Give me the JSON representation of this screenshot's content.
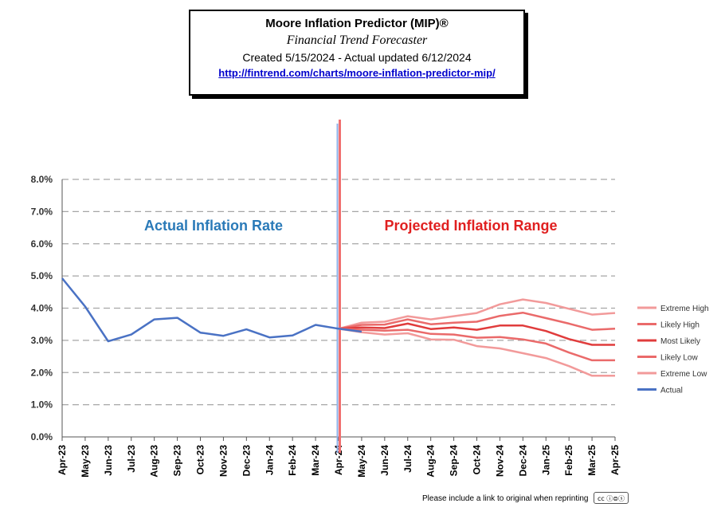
{
  "header": {
    "title": "Moore Inflation Predictor (MIP)®",
    "subtitle": "Financial Trend Forecaster",
    "created": "Created 5/15/2024 - Actual updated 6/12/2024",
    "link": "http://fintrend.com/charts/moore-inflation-predictor-mip/"
  },
  "footer": {
    "note": "Please include a link to original when reprinting",
    "badge_icon": "creative-commons-icon",
    "badge_text": "cc ⓘ⊜ⓢ"
  },
  "chart_data": {
    "type": "line",
    "annotations": {
      "actual": "Actual Inflation Rate",
      "projected": "Projected Inflation Range"
    },
    "categories": [
      "Apr-23",
      "May-23",
      "Jun-23",
      "Jul-23",
      "Aug-23",
      "Sep-23",
      "Oct-23",
      "Nov-23",
      "Dec-23",
      "Jan-24",
      "Feb-24",
      "Mar-24",
      "Apr-24",
      "May-24",
      "Jun-24",
      "Jul-24",
      "Aug-24",
      "Sep-24",
      "Oct-24",
      "Nov-24",
      "Dec-24",
      "Jan-25",
      "Feb-25",
      "Mar-25",
      "Apr-25"
    ],
    "y_ticks": [
      "0.0%",
      "1.0%",
      "2.0%",
      "3.0%",
      "4.0%",
      "5.0%",
      "6.0%",
      "7.0%",
      "8.0%"
    ],
    "ylim": [
      0,
      8
    ],
    "grid": true,
    "legend_position": "right",
    "series": [
      {
        "name": "Extreme High",
        "color": "#f29a9a",
        "width": 2.5,
        "values": [
          null,
          null,
          null,
          null,
          null,
          null,
          null,
          null,
          null,
          null,
          null,
          null,
          3.36,
          3.55,
          3.58,
          3.75,
          3.65,
          3.75,
          3.85,
          4.12,
          4.27,
          4.16,
          3.98,
          3.8,
          3.85
        ]
      },
      {
        "name": "Likely High",
        "color": "#ea6a6a",
        "width": 2.5,
        "values": [
          null,
          null,
          null,
          null,
          null,
          null,
          null,
          null,
          null,
          null,
          null,
          null,
          3.36,
          3.48,
          3.49,
          3.65,
          3.5,
          3.55,
          3.58,
          3.76,
          3.86,
          3.69,
          3.52,
          3.33,
          3.36
        ]
      },
      {
        "name": "Most Likely",
        "color": "#e03c3c",
        "width": 2.5,
        "values": [
          null,
          null,
          null,
          null,
          null,
          null,
          null,
          null,
          null,
          null,
          null,
          null,
          3.36,
          3.4,
          3.38,
          3.52,
          3.35,
          3.4,
          3.33,
          3.46,
          3.46,
          3.29,
          3.04,
          2.86,
          2.86
        ]
      },
      {
        "name": "Likely Low",
        "color": "#ea6a6a",
        "width": 2.5,
        "values": [
          null,
          null,
          null,
          null,
          null,
          null,
          null,
          null,
          null,
          null,
          null,
          null,
          3.36,
          3.33,
          3.3,
          3.33,
          3.2,
          3.18,
          3.08,
          3.1,
          3.03,
          2.9,
          2.62,
          2.38,
          2.38
        ]
      },
      {
        "name": "Extreme Low",
        "color": "#f29a9a",
        "width": 2.5,
        "values": [
          null,
          null,
          null,
          null,
          null,
          null,
          null,
          null,
          null,
          null,
          null,
          null,
          3.36,
          3.25,
          3.18,
          3.22,
          3.03,
          3.02,
          2.82,
          2.75,
          2.6,
          2.45,
          2.2,
          1.9,
          1.9
        ]
      },
      {
        "name": "Actual",
        "color": "#4a72c4",
        "width": 2.5,
        "values": [
          4.93,
          4.05,
          2.97,
          3.18,
          3.65,
          3.7,
          3.24,
          3.14,
          3.34,
          3.09,
          3.15,
          3.48,
          3.36,
          3.27,
          null,
          null,
          null,
          null,
          null,
          null,
          null,
          null,
          null,
          null,
          null
        ]
      }
    ],
    "colors": {
      "actual_annotation": "#2a7ab8",
      "projected_annotation": "#e02020",
      "divider_pink": "#f07070",
      "divider_blue": "#8fb0e8"
    }
  }
}
